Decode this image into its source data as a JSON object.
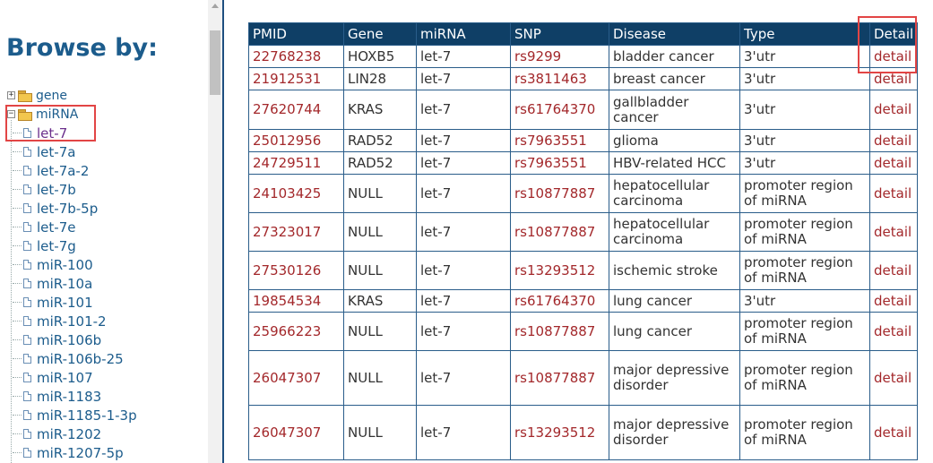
{
  "sidebar": {
    "title": "Browse by:",
    "nodes": [
      {
        "label": "gene",
        "expander": "+"
      },
      {
        "label": "miRNA",
        "expander": "−"
      }
    ],
    "leaves": [
      "let-7",
      "let-7a",
      "let-7a-2",
      "let-7b",
      "let-7b-5p",
      "let-7e",
      "let-7g",
      "miR-100",
      "miR-10a",
      "miR-101",
      "miR-101-2",
      "miR-106b",
      "miR-106b-25",
      "miR-107",
      "miR-1183",
      "miR-1185-1-3p",
      "miR-1202",
      "miR-1207-5p"
    ],
    "selected_leaf": "let-7"
  },
  "table": {
    "headers": [
      "PMID",
      "Gene",
      "miRNA",
      "SNP",
      "Disease",
      "Type",
      "Detail"
    ],
    "rows": [
      {
        "pmid": "22768238",
        "gene": "HOXB5",
        "mirna": "let-7",
        "snp": "rs9299",
        "disease": "bladder cancer",
        "type": "3'utr",
        "detail": "detail"
      },
      {
        "pmid": "21912531",
        "gene": "LIN28",
        "mirna": "let-7",
        "snp": "rs3811463",
        "disease": "breast cancer",
        "type": "3'utr",
        "detail": "detail"
      },
      {
        "pmid": "27620744",
        "gene": "KRAS",
        "mirna": "let-7",
        "snp": "rs61764370",
        "disease": "gallbladder cancer",
        "type": "3'utr",
        "detail": "detail"
      },
      {
        "pmid": "25012956",
        "gene": "RAD52",
        "mirna": "let-7",
        "snp": "rs7963551",
        "disease": "glioma",
        "type": "3'utr",
        "detail": "detail"
      },
      {
        "pmid": "24729511",
        "gene": "RAD52",
        "mirna": "let-7",
        "snp": "rs7963551",
        "disease": "HBV-related HCC",
        "type": "3'utr",
        "detail": "detail"
      },
      {
        "pmid": "24103425",
        "gene": "NULL",
        "mirna": "let-7",
        "snp": "rs10877887",
        "disease": "hepatocellular carcinoma",
        "type": "promoter region of miRNA",
        "detail": "detail"
      },
      {
        "pmid": "27323017",
        "gene": "NULL",
        "mirna": "let-7",
        "snp": "rs10877887",
        "disease": "hepatocellular carcinoma",
        "type": "promoter region of miRNA",
        "detail": "detail"
      },
      {
        "pmid": "27530126",
        "gene": "NULL",
        "mirna": "let-7",
        "snp": "rs13293512",
        "disease": "ischemic stroke",
        "type": "promoter region of miRNA",
        "detail": "detail"
      },
      {
        "pmid": "19854534",
        "gene": "KRAS",
        "mirna": "let-7",
        "snp": "rs61764370",
        "disease": "lung cancer",
        "type": "3'utr",
        "detail": "detail"
      },
      {
        "pmid": "25966223",
        "gene": "NULL",
        "mirna": "let-7",
        "snp": "rs10877887",
        "disease": "lung cancer",
        "type": "promoter region of miRNA",
        "detail": "detail"
      },
      {
        "pmid": "26047307",
        "gene": "NULL",
        "mirna": "let-7",
        "snp": "rs10877887",
        "disease": "major depressive disorder",
        "type": "promoter region of miRNA",
        "detail": "detail"
      },
      {
        "pmid": "26047307",
        "gene": "NULL",
        "mirna": "let-7",
        "snp": "rs13293512",
        "disease": "major depressive disorder",
        "type": "promoter region of miRNA",
        "detail": "detail"
      }
    ]
  },
  "colors": {
    "header_bg": "#0f3f66",
    "link": "#a3282b",
    "tree_text": "#1c5c8c",
    "highlight": "#e24545"
  }
}
